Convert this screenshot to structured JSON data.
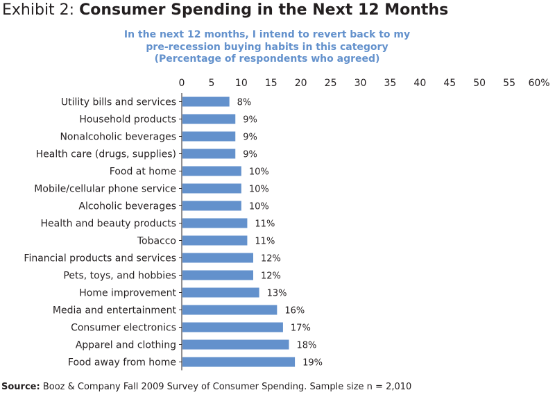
{
  "exhibit": {
    "label": "Exhibit 2: ",
    "title": "Consumer Spending in the Next 12 Months"
  },
  "source": {
    "label": "Source:",
    "text": " Booz & Company Fall 2009 Survey of Consumer Spending. Sample size n = 2,010"
  },
  "chart_data": {
    "type": "bar",
    "orientation": "horizontal",
    "title": [
      "In the next 12 months, I intend to revert back to my",
      "pre-recession buying habits in this category",
      "(Percentage of respondents who agreed)"
    ],
    "xlim": [
      0,
      60
    ],
    "x_ticks": [
      "0",
      "5",
      "10",
      "15",
      "20",
      "25",
      "30",
      "35",
      "40",
      "45",
      "50",
      "55",
      "60%"
    ],
    "x_axis_position": "top",
    "grid": false,
    "bar_color": "#6391cc",
    "categories": [
      "Utility bills and services",
      "Household products",
      "Nonalcoholic beverages",
      "Health care (drugs, supplies)",
      "Food at home",
      "Mobile/cellular phone service",
      "Alcoholic beverages",
      "Health and beauty products",
      "Tobacco",
      "Financial products and services",
      "Pets, toys, and hobbies",
      "Home improvement",
      "Media and entertainment",
      "Consumer electronics",
      "Apparel and clothing",
      "Food away from home"
    ],
    "values": [
      8,
      9,
      9,
      9,
      10,
      10,
      10,
      11,
      11,
      12,
      12,
      13,
      16,
      17,
      18,
      19
    ],
    "value_labels": [
      "8%",
      "9%",
      "9%",
      "9%",
      "10%",
      "10%",
      "10%",
      "11%",
      "11%",
      "12%",
      "12%",
      "13%",
      "16%",
      "17%",
      "18%",
      "19%"
    ]
  }
}
